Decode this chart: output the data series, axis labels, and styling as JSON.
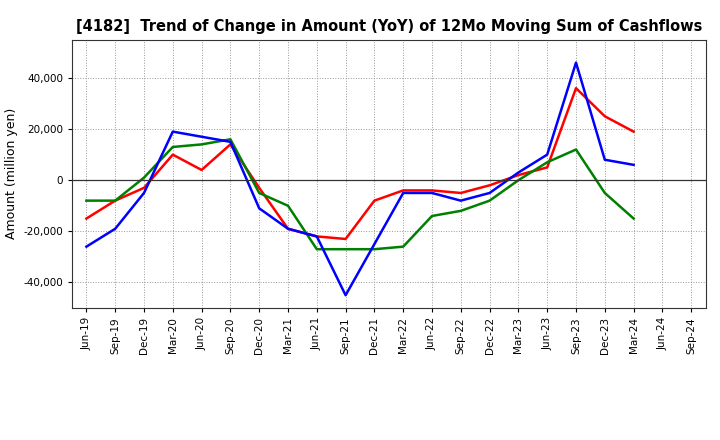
{
  "title": "[4182]  Trend of Change in Amount (YoY) of 12Mo Moving Sum of Cashflows",
  "ylabel": "Amount (million yen)",
  "x_labels": [
    "Jun-19",
    "Sep-19",
    "Dec-19",
    "Mar-20",
    "Jun-20",
    "Sep-20",
    "Dec-20",
    "Mar-21",
    "Jun-21",
    "Sep-21",
    "Dec-21",
    "Mar-22",
    "Jun-22",
    "Sep-22",
    "Dec-22",
    "Mar-23",
    "Jun-23",
    "Sep-23",
    "Dec-23",
    "Mar-24",
    "Jun-24",
    "Sep-24"
  ],
  "operating": [
    -15000,
    -8000,
    -3000,
    10000,
    4000,
    14000,
    -3000,
    -19000,
    -22000,
    -23000,
    -8000,
    -4000,
    -4000,
    -5000,
    -2000,
    2000,
    5000,
    36000,
    25000,
    19000,
    null,
    null
  ],
  "investing": [
    -8000,
    -8000,
    1000,
    13000,
    14000,
    16000,
    -5000,
    -10000,
    -27000,
    -27000,
    -27000,
    -26000,
    -14000,
    -12000,
    -8000,
    0,
    7000,
    12000,
    -5000,
    -15000,
    null,
    null
  ],
  "free": [
    -26000,
    -19000,
    -5000,
    19000,
    17000,
    15000,
    -11000,
    -19000,
    -22000,
    -45000,
    -25000,
    -5000,
    -5000,
    -8000,
    -5000,
    3000,
    10000,
    46000,
    8000,
    6000,
    null,
    null
  ],
  "operating_color": "#ff0000",
  "investing_color": "#008000",
  "free_color": "#0000ff",
  "ylim": [
    -50000,
    55000
  ],
  "yticks": [
    -40000,
    -20000,
    0,
    20000,
    40000
  ],
  "bg_color": "#ffffff",
  "plot_bg_color": "#ffffff",
  "grid_color": "#999999",
  "line_width": 1.8,
  "title_fontsize": 10.5,
  "ylabel_fontsize": 9,
  "tick_fontsize": 7.5,
  "legend_fontsize": 9
}
